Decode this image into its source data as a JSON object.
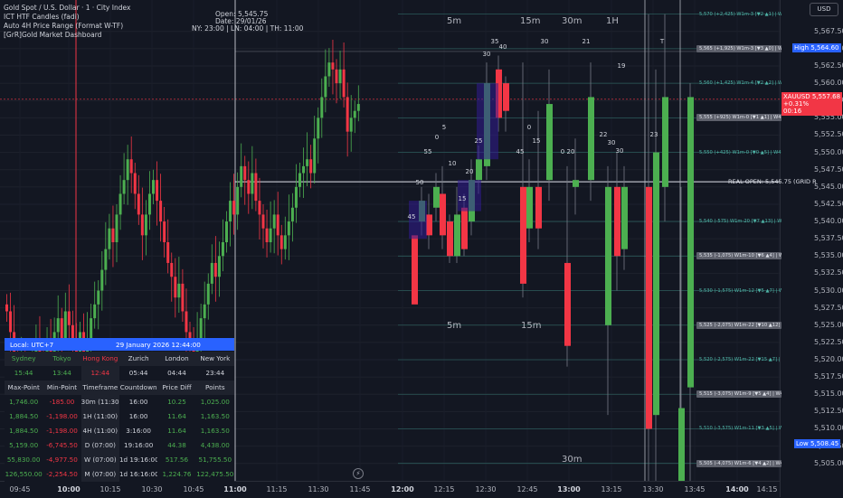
{
  "header": {
    "symbol_line": "Gold Spot / U.S. Dollar · 1 · City Index",
    "indicator1": "ICT HTF Candles (fadi)",
    "indicator2": "Auto 4H Price Range (Format W-TF)",
    "indicator3": "[GrR]Gold Market Dashboard",
    "open_line": "Open: 5,545.75",
    "date_line": "Date: 29/01/26",
    "sessions_line": "NY: 23:00 | LN: 04:00 | TH: 11:00"
  },
  "currency_button": "USD",
  "price_axis": {
    "ticks": [
      "5,567.50",
      "5,565.00",
      "5,562.50",
      "5,560.00",
      "5,557.50",
      "5,555.00",
      "5,552.50",
      "5,550.00",
      "5,547.50",
      "5,545.00",
      "5,542.50",
      "5,540.00",
      "5,537.50",
      "5,535.00",
      "5,532.50",
      "5,530.00",
      "5,527.50",
      "5,525.00",
      "5,522.50",
      "5,520.00",
      "5,517.50",
      "5,515.00",
      "5,512.50",
      "5,510.00",
      "5,507.50",
      "5,505.00"
    ],
    "high_tag": {
      "label": "High",
      "value": "5,564.60",
      "color": "#2962ff"
    },
    "symbol_tag": {
      "label": "XAUUSD",
      "value": "5,557.68",
      "change": "+0.31%",
      "countdown": "00:16",
      "color": "#f23645"
    },
    "low_tag": {
      "label": "Low",
      "value": "5,508.45",
      "color": "#2962ff"
    }
  },
  "time_axis": [
    "09:45",
    "10:00",
    "10:15",
    "10:30",
    "10:45",
    "11:00",
    "11:15",
    "11:30",
    "11:45",
    "12:00",
    "12:15",
    "12:30",
    "12:45",
    "13:00",
    "13:15",
    "13:30",
    "13:45",
    "14:00",
    "14:15"
  ],
  "htf_labels": {
    "top": [
      "5m",
      "15m",
      "30m",
      "1H"
    ],
    "mid": [
      "5m",
      "15m"
    ],
    "bottom": [
      "30m"
    ]
  },
  "candle_counts": [
    "45",
    "50",
    "55",
    "0",
    "10",
    "5",
    "15",
    "20",
    "25",
    "30",
    "35",
    "40",
    "45",
    "0",
    "15",
    "30",
    "0",
    "20",
    "21",
    "22",
    "30",
    "30",
    "19",
    "23",
    "T"
  ],
  "real_open": "REAL OPEN: 5,545.75 (GRID R",
  "levels": [
    "5,570 (+2,425) W1m-3 [▼2 ▲1] | W4H-1 [▼0 ▲1]",
    "5,565 (+1,925) W1m-3 [▼3 ▲0] | W4H-1 [▼0 ▲1]",
    "5,560 (+1,425) W1m-4 [▼2 ▲2] | W4H-1 [▼0 ▲1]",
    "5,555 (+925) W1m-0 [▼1 ▲1] | W4H-1 [▼0 ▲1]",
    "5,550 (+425) W1m-0 [▼0 ▲5] | W4H-2 [▼0 ▲2]",
    "5,540 (-575) W1m-20 [▼7 ▲13] | W4H-2 [▼1 ▲1]",
    "5,535 (-1,075) W1m-10 [▼6 ▲4] | W4H-2 [▼1 ▲1]",
    "5,530 (-1,575) W1m-12 [▼5 ▲7] | W4H-1 [▼0 ▲1]",
    "5,525 (-2,075) W1m-22 [▼10 ▲12] | W4H-1 [▼0 ▲1]",
    "5,520 (-2,575) W1m-22 [▼15 ▲7] | W4H-1 [▼0 ▲1]",
    "5,515 (-3,075) W1m-9 [▼5 ▲4] | W4H-1 [▼0 ▲1]",
    "5,510 (-3,575) W1m-11 [▼3 ▲5] | W4H-1 [▼1 ▲0]",
    "5,505 (-4,075) W1m-6 [▼4 ▲2] | W4H-1 [▼0 ▲1]"
  ],
  "dashboard": {
    "local": "Local: UTC+7",
    "date_time": "29 January 2026 12:44:00",
    "cities": [
      "Sydney",
      "Tokyo",
      "Hong Kong",
      "Zurich",
      "London",
      "New York"
    ],
    "city_times": [
      "15:44",
      "13:44",
      "12:44",
      "05:44",
      "04:44",
      "23:44"
    ],
    "columns": [
      "Max-Point",
      "Min-Point",
      "Timeframe",
      "Countdown",
      "Price Diff",
      "Points"
    ],
    "rows": [
      [
        "1,746.00",
        "-185.00",
        "30m (11:30)",
        "16:00",
        "10.25",
        "1,025.00"
      ],
      [
        "1,884.50",
        "-1,198.00",
        "1H (11:00)",
        "16:00",
        "11.64",
        "1,163.50"
      ],
      [
        "1,884.50",
        "-1,198.00",
        "4H (11:00)",
        "3:16:00",
        "11.64",
        "1,163.50"
      ],
      [
        "5,159.00",
        "-6,745.50",
        "D (07:00)",
        "19:16:00",
        "44.38",
        "4,438.00"
      ],
      [
        "55,830.00",
        "-4,977.50",
        "W (07:00)",
        "1d 19:16:00",
        "517.56",
        "51,755.50"
      ],
      [
        "126,550.00",
        "-2,254.50",
        "M (07:00)",
        "1d 16:16:00",
        "1,224.76",
        "122,475.50"
      ]
    ]
  },
  "colors": {
    "up": "#4caf50",
    "down": "#f23645",
    "background": "#131722",
    "accent": "#2962ff",
    "level": "#3d7a7a"
  },
  "chart_data": {
    "type": "candlestick",
    "series": [
      {
        "values": [
          [
            5525.5,
            5533.0,
            5522.0,
            5531.5
          ],
          [
            5531.5,
            5531.5,
            5513.0,
            5518.0
          ],
          [
            5518.0,
            5530.0,
            5516.5,
            5528.5
          ],
          [
            5528.5,
            5536.5,
            5526.0,
            5534.5
          ],
          [
            5534.5,
            5538.0,
            5521.0,
            5524.5
          ],
          [
            5524.5,
            5532.0,
            5520.5,
            5529.0
          ],
          [
            5529.0,
            5535.5,
            5524.0,
            5532.0
          ],
          [
            5532.0,
            5540.0,
            5529.5,
            5538.0
          ],
          [
            5538.0,
            5546.0,
            5535.0,
            5543.0
          ],
          [
            5543.0,
            5549.5,
            5538.5,
            5546.5
          ],
          [
            5546.5,
            5548.0,
            5533.0,
            5536.0
          ],
          [
            5536.0,
            5544.0,
            5530.5,
            5541.5
          ],
          [
            5541.5,
            5547.5,
            5537.0,
            5545.0
          ],
          [
            5545.0,
            5546.0,
            5534.5,
            5537.5
          ],
          [
            5537.5,
            5543.0,
            5532.5,
            5540.5
          ],
          [
            5540.5,
            5548.0,
            5538.0,
            5546.0
          ],
          [
            5546.0,
            5550.5,
            5542.0,
            5547.5
          ],
          [
            5547.5,
            5549.0,
            5538.0,
            5540.0
          ],
          [
            5540.0,
            5553.0,
            5539.0,
            5551.0
          ],
          [
            5551.0,
            5563.5,
            5549.0,
            5561.5
          ],
          [
            5561.5,
            5564.6,
            5555.0,
            5557.0
          ],
          [
            5557.0,
            5560.0,
            5551.0,
            5552.5
          ],
          [
            5552.5,
            5558.5,
            5550.5,
            5557.7
          ]
        ]
      }
    ],
    "y_range": [
      5503.0,
      5571.0
    ]
  }
}
